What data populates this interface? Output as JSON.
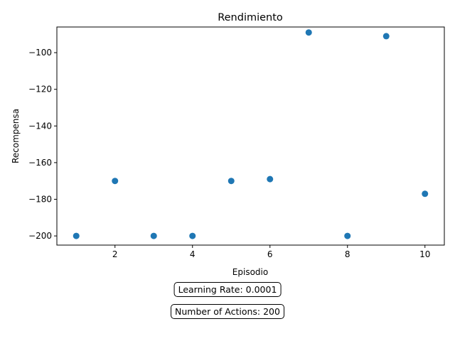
{
  "chart_data": {
    "type": "scatter",
    "title": "Rendimiento",
    "xlabel": "Episodio",
    "ylabel": "Recompensa",
    "x": [
      1,
      2,
      3,
      4,
      5,
      6,
      7,
      8,
      9,
      10
    ],
    "y": [
      -200,
      -170,
      -200,
      -200,
      -170,
      -169,
      -89,
      -200,
      -91,
      -177
    ],
    "xlim": [
      0.5,
      10.5
    ],
    "ylim": [
      -205,
      -86
    ],
    "xticks": [
      2,
      4,
      6,
      8,
      10
    ],
    "yticks": [
      -200,
      -180,
      -160,
      -140,
      -120,
      -100
    ],
    "grid": false,
    "marker_color": "#1f77b4",
    "annotations": [
      "Learning Rate: 0.0001",
      "Number of Actions: 200"
    ]
  }
}
